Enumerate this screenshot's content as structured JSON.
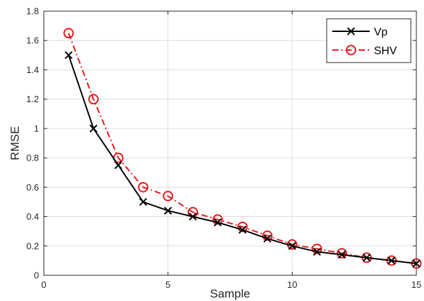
{
  "chart_data": {
    "type": "line",
    "title": "",
    "xlabel": "Sample",
    "ylabel": "RMSE",
    "xlim": [
      0,
      15
    ],
    "ylim": [
      0,
      1.8
    ],
    "xticks": [
      0,
      5,
      10,
      15
    ],
    "yticks": [
      0,
      0.2,
      0.4,
      0.6,
      0.8,
      1,
      1.2,
      1.4,
      1.6,
      1.8
    ],
    "grid": true,
    "legend_position": "top-right",
    "x": [
      1,
      2,
      3,
      4,
      5,
      6,
      7,
      8,
      9,
      10,
      11,
      12,
      13,
      14,
      15
    ],
    "series": [
      {
        "name": "Vp",
        "color": "#000000",
        "line_style": "solid",
        "marker": "x",
        "values": [
          1.5,
          1.0,
          0.75,
          0.5,
          0.44,
          0.4,
          0.36,
          0.31,
          0.25,
          0.2,
          0.16,
          0.14,
          0.12,
          0.1,
          0.08
        ]
      },
      {
        "name": "SHV",
        "color": "#e41a1c",
        "line_style": "dash-dot",
        "marker": "circle",
        "values": [
          1.65,
          1.2,
          0.8,
          0.6,
          0.54,
          0.43,
          0.38,
          0.33,
          0.27,
          0.21,
          0.18,
          0.15,
          0.12,
          0.1,
          0.08
        ]
      }
    ]
  }
}
